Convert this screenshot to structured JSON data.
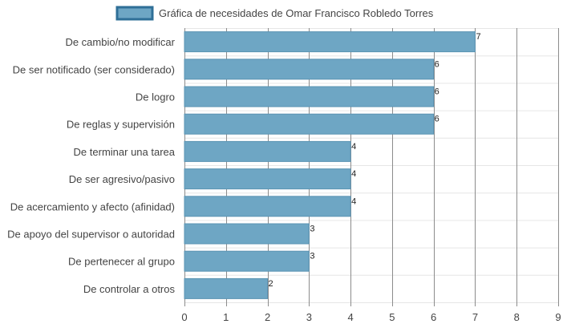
{
  "colors": {
    "bar_fill": "#6ea6c4",
    "bar_stroke": "#5b94b3",
    "legend_fill": "#6ea6c4",
    "legend_stroke": "#2f6f97",
    "grid_vertical": "#8c8c8c",
    "grid_horizontal": "#e6e6e6",
    "text": "#444444",
    "value_label": "#222222"
  },
  "chart_data": {
    "type": "bar",
    "orientation": "horizontal",
    "legend_position": "top-center",
    "grid": true,
    "xlim": [
      0,
      9
    ],
    "x_ticks": [
      "0",
      "1",
      "2",
      "3",
      "4",
      "5",
      "6",
      "7",
      "8",
      "9"
    ],
    "series": [
      {
        "name": "Gráfica de necesidades de Omar Francisco Robledo Torres",
        "values": [
          7,
          6,
          6,
          6,
          4,
          4,
          4,
          3,
          3,
          2
        ]
      }
    ],
    "categories": [
      "De cambio/no modificar",
      "De ser notificado (ser considerado)",
      "De logro",
      "De reglas y supervisión",
      "De terminar una tarea",
      "De ser agresivo/pasivo",
      "De acercamiento y afecto (afinidad)",
      "De apoyo del supervisor o autoridad",
      "De pertenecer al grupo",
      "De controlar a otros"
    ],
    "value_labels": [
      "7",
      "6",
      "6",
      "6",
      "4",
      "4",
      "4",
      "3",
      "3",
      "2"
    ]
  }
}
